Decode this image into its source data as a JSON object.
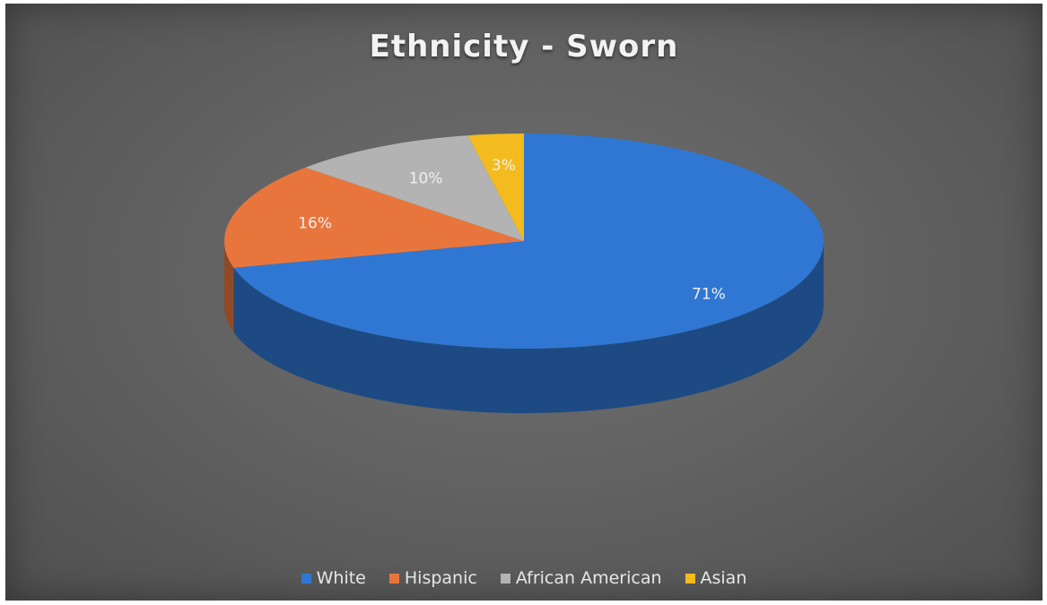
{
  "chart_data": {
    "type": "pie",
    "title": "Ethnicity - Sworn",
    "categories": [
      "White",
      "Hispanic",
      "African American",
      "Asian"
    ],
    "values": [
      71,
      16,
      10,
      3
    ],
    "data_labels": [
      "71%",
      "16%",
      "10%",
      "3%"
    ],
    "colors": [
      "#2f77d2",
      "#e8763c",
      "#b3b3b3",
      "#f3bb1e"
    ],
    "legend_position": "bottom",
    "style": "3d"
  }
}
